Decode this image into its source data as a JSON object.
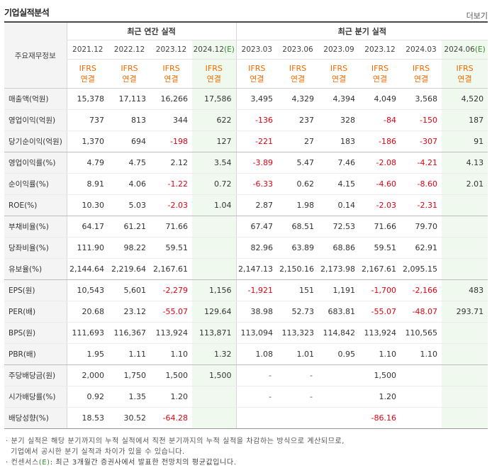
{
  "header": {
    "title": "기업실적분석",
    "more": "더보기"
  },
  "table": {
    "row_header": "주요재무정보",
    "annual_group": "최근 연간 실적",
    "quarter_group": "최근 분기 실적",
    "annual_periods": [
      "2021.12",
      "2022.12",
      "2023.12",
      "2024.12"
    ],
    "annual_estimate_mark": "(E)",
    "quarter_periods": [
      "2023.03",
      "2023.06",
      "2023.09",
      "2023.12",
      "2024.03",
      "2024.06"
    ],
    "quarter_estimate_mark": "(E)",
    "ifrs_line1": "IFRS",
    "ifrs_line2": "연결",
    "rows": [
      {
        "label": "매출액(억원)",
        "values": [
          "15,378",
          "17,113",
          "16,266",
          "17,586",
          "3,495",
          "4,329",
          "4,394",
          "4,049",
          "3,568",
          "4,520"
        ]
      },
      {
        "label": "영업이익(억원)",
        "values": [
          "737",
          "813",
          "344",
          "622",
          "-136",
          "237",
          "328",
          "-84",
          "-150",
          "187"
        ]
      },
      {
        "label": "당기순이익(억원)",
        "values": [
          "1,370",
          "694",
          "-198",
          "127",
          "-221",
          "27",
          "183",
          "-186",
          "-307",
          "91"
        ]
      },
      {
        "label": "영업이익률(%)",
        "values": [
          "4.79",
          "4.75",
          "2.12",
          "3.54",
          "-3.89",
          "5.47",
          "7.46",
          "-2.08",
          "-4.21",
          "4.13"
        ]
      },
      {
        "label": "순이익률(%)",
        "values": [
          "8.91",
          "4.06",
          "-1.22",
          "0.72",
          "-6.33",
          "0.62",
          "4.15",
          "-4.60",
          "-8.60",
          "2.01"
        ]
      },
      {
        "label": "ROE(%)",
        "values": [
          "10.30",
          "5.03",
          "-2.03",
          "1.04",
          "2.87",
          "1.98",
          "0.14",
          "-2.03",
          "-2.31",
          ""
        ]
      },
      {
        "label": "부채비율(%)",
        "values": [
          "64.17",
          "61.21",
          "71.66",
          "",
          "67.47",
          "68.51",
          "72.53",
          "71.66",
          "79.70",
          ""
        ]
      },
      {
        "label": "당좌비율(%)",
        "values": [
          "111.90",
          "98.22",
          "59.51",
          "",
          "82.96",
          "63.89",
          "68.86",
          "59.51",
          "62.91",
          ""
        ]
      },
      {
        "label": "유보율(%)",
        "values": [
          "2,144.64",
          "2,219.64",
          "2,167.61",
          "",
          "2,147.13",
          "2,150.16",
          "2,173.98",
          "2,167.61",
          "2,095.15",
          ""
        ]
      },
      {
        "label": "EPS(원)",
        "values": [
          "10,543",
          "5,601",
          "-2,279",
          "1,156",
          "-1,921",
          "151",
          "1,191",
          "-1,700",
          "-2,166",
          "483"
        ]
      },
      {
        "label": "PER(배)",
        "values": [
          "20.68",
          "23.12",
          "-55.07",
          "129.64",
          "38.98",
          "52.73",
          "683.81",
          "-55.07",
          "-48.07",
          "293.71"
        ]
      },
      {
        "label": "BPS(원)",
        "values": [
          "111,693",
          "116,367",
          "113,924",
          "113,871",
          "113,094",
          "113,323",
          "114,842",
          "113,924",
          "110,565",
          ""
        ]
      },
      {
        "label": "PBR(배)",
        "values": [
          "1.95",
          "1.11",
          "1.10",
          "1.32",
          "1.08",
          "1.01",
          "0.95",
          "1.10",
          "1.10",
          ""
        ]
      },
      {
        "label": "주당배당금(원)",
        "values": [
          "2,000",
          "1,750",
          "1,500",
          "1,500",
          "-",
          "-",
          "",
          "1,500",
          "",
          ""
        ]
      },
      {
        "label": "시가배당률(%)",
        "values": [
          "0.92",
          "1.35",
          "1.20",
          "",
          "-",
          "-",
          "",
          "1.20",
          "",
          ""
        ]
      },
      {
        "label": "배당성향(%)",
        "values": [
          "18.53",
          "30.52",
          "-64.28",
          "",
          "",
          "",
          "",
          "-86.16",
          "",
          ""
        ]
      }
    ]
  },
  "notes": {
    "line1": "분기 실적은 해당 분기까지의 누적 실적에서 직전 분기까지의 누적 실적을 차감하는 방식으로 계산되므로,",
    "line2": "기업에서 공시한 분기 실적과 차이가 있을 수 있습니다.",
    "line3_prefix": "컨센서스",
    "line3_mark": "(E)",
    "line3_suffix": ": 최근 3개월간 증권사에서 발표한 전망치의 평균값입니다."
  },
  "colors": {
    "negative": "#e60012",
    "ifrs": "#ee6a00",
    "estimate_bg": "#f0f9ee",
    "estimate_mark": "#2e8b2e"
  }
}
